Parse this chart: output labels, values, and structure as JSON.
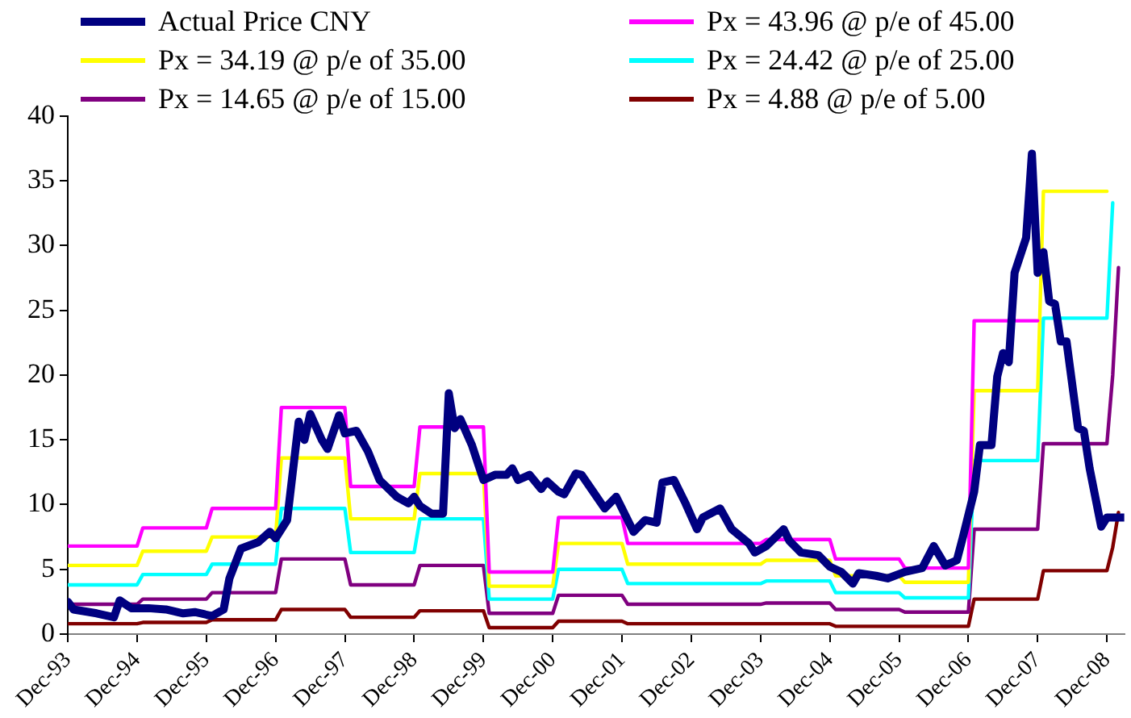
{
  "chart_data": {
    "type": "line",
    "legend": "top",
    "marker": "none",
    "line_style": "solid",
    "xlim": [
      "1993-12",
      "2009-03"
    ],
    "xticks": [
      {
        "value": "1993-12",
        "label": "Dec-93"
      },
      {
        "value": "1994-12",
        "label": "Dec-94"
      },
      {
        "value": "1995-12",
        "label": "Dec-95"
      },
      {
        "value": "1996-12",
        "label": "Dec-96"
      },
      {
        "value": "1997-12",
        "label": "Dec-97"
      },
      {
        "value": "1998-12",
        "label": "Dec-98"
      },
      {
        "value": "1999-12",
        "label": "Dec-99"
      },
      {
        "value": "2000-12",
        "label": "Dec-00"
      },
      {
        "value": "2001-12",
        "label": "Dec-01"
      },
      {
        "value": "2002-12",
        "label": "Dec-02"
      },
      {
        "value": "2003-12",
        "label": "Dec-03"
      },
      {
        "value": "2004-12",
        "label": "Dec-04"
      },
      {
        "value": "2005-12",
        "label": "Dec-05"
      },
      {
        "value": "2006-12",
        "label": "Dec-06"
      },
      {
        "value": "2007-12",
        "label": "Dec-07"
      },
      {
        "value": "2008-12",
        "label": "Dec-08"
      }
    ],
    "ylim": [
      0,
      40
    ],
    "yticks": [
      0,
      5,
      10,
      15,
      20,
      25,
      30,
      35,
      40
    ],
    "series": [
      {
        "name": "Actual Price CNY",
        "color": "#000080",
        "x": [
          "1993-12",
          "1994-01",
          "1994-05",
          "1994-08",
          "1994-09",
          "1994-11",
          "1995-02",
          "1995-05",
          "1995-08",
          "1995-10",
          "1996-01",
          "1996-03",
          "1996-04",
          "1996-06",
          "1996-09",
          "1996-11",
          "1996-12",
          "1997-02",
          "1997-04",
          "1997-05",
          "1997-06",
          "1997-08",
          "1997-09",
          "1997-11",
          "1997-12",
          "1998-02",
          "1998-04",
          "1998-06",
          "1998-09",
          "1998-11",
          "1998-12",
          "1999-01",
          "1999-03",
          "1999-05",
          "1999-06",
          "1999-07",
          "1999-08",
          "1999-10",
          "1999-12",
          "2000-02",
          "2000-04",
          "2000-05",
          "2000-06",
          "2000-08",
          "2000-10",
          "2000-11",
          "2001-01",
          "2001-02",
          "2001-04",
          "2001-05",
          "2001-07",
          "2001-09",
          "2001-11",
          "2001-12",
          "2002-02",
          "2002-04",
          "2002-06",
          "2002-07",
          "2002-09",
          "2002-11",
          "2003-01",
          "2003-02",
          "2003-05",
          "2003-07",
          "2003-10",
          "2003-11",
          "2004-01",
          "2004-04",
          "2004-05",
          "2004-07",
          "2004-10",
          "2004-12",
          "2005-02",
          "2005-04",
          "2005-05",
          "2005-08",
          "2005-10",
          "2006-01",
          "2006-04",
          "2006-06",
          "2006-08",
          "2006-10",
          "2006-11",
          "2007-01",
          "2007-02",
          "2007-04",
          "2007-05",
          "2007-06",
          "2007-07",
          "2007-08",
          "2007-10",
          "2007-11",
          "2007-12",
          "2008-01",
          "2008-02",
          "2008-03",
          "2008-04",
          "2008-05",
          "2008-07",
          "2008-08",
          "2008-09",
          "2008-11",
          "2008-12",
          "2009-03"
        ],
        "values": [
          2.5,
          1.9,
          1.6,
          1.3,
          2.6,
          2.0,
          2.0,
          1.9,
          1.6,
          1.7,
          1.4,
          1.9,
          4.3,
          6.6,
          7.1,
          7.9,
          7.4,
          8.8,
          16.4,
          15.0,
          17.0,
          15.0,
          14.3,
          16.9,
          15.5,
          15.7,
          14.1,
          11.9,
          10.6,
          10.1,
          10.6,
          9.9,
          9.3,
          9.3,
          18.6,
          15.9,
          16.6,
          14.6,
          11.9,
          12.3,
          12.3,
          12.8,
          11.9,
          12.3,
          11.2,
          11.8,
          11.0,
          10.8,
          12.4,
          12.3,
          11.0,
          9.7,
          10.6,
          9.7,
          7.9,
          8.8,
          8.6,
          11.7,
          11.9,
          10.1,
          8.1,
          9.0,
          9.7,
          8.1,
          7.0,
          6.3,
          6.8,
          8.1,
          7.2,
          6.3,
          6.1,
          5.2,
          4.8,
          3.9,
          4.7,
          4.5,
          4.3,
          4.8,
          5.1,
          6.8,
          5.3,
          5.7,
          7.4,
          11.0,
          14.6,
          14.6,
          19.9,
          21.7,
          21.0,
          27.9,
          30.6,
          37.1,
          27.9,
          29.5,
          25.7,
          25.5,
          22.6,
          22.6,
          15.9,
          15.7,
          12.8,
          8.3,
          9.0,
          9.0
        ]
      },
      {
        "name": "Px = 43.96 @ p/e of 45.00",
        "color": "#ff00ff",
        "x": [
          "1993-12",
          "1994-12",
          "1995-01",
          "1995-12",
          "1996-01",
          "1996-12",
          "1997-01",
          "1997-12",
          "1998-01",
          "1998-12",
          "1999-01",
          "1999-12",
          "2000-01",
          "2000-12",
          "2001-01",
          "2001-12",
          "2002-01",
          "2003-12",
          "2004-01",
          "2004-12",
          "2005-01",
          "2005-12",
          "2006-01",
          "2006-12",
          "2007-01",
          "2007-12"
        ],
        "values": [
          6.8,
          6.8,
          8.2,
          8.2,
          9.7,
          9.7,
          17.5,
          17.5,
          11.4,
          11.4,
          16.0,
          16.0,
          4.8,
          4.8,
          9.0,
          9.0,
          7.0,
          7.0,
          7.3,
          7.3,
          5.8,
          5.8,
          5.1,
          5.1,
          24.2,
          24.2
        ]
      },
      {
        "name": "Px = 34.19 @ p/e of 35.00",
        "color": "#ffff00",
        "x": [
          "1993-12",
          "1994-12",
          "1995-01",
          "1995-12",
          "1996-01",
          "1996-12",
          "1997-01",
          "1997-12",
          "1998-01",
          "1998-12",
          "1999-01",
          "1999-12",
          "2000-01",
          "2000-12",
          "2001-01",
          "2001-12",
          "2002-01",
          "2003-12",
          "2004-01",
          "2004-12",
          "2005-01",
          "2005-12",
          "2006-01",
          "2006-12",
          "2007-01",
          "2007-12",
          "2008-01",
          "2008-12"
        ],
        "values": [
          5.3,
          5.3,
          6.4,
          6.4,
          7.5,
          7.5,
          13.6,
          13.6,
          8.9,
          8.9,
          12.4,
          12.4,
          3.7,
          3.7,
          7.0,
          7.0,
          5.4,
          5.4,
          5.7,
          5.7,
          4.5,
          4.5,
          4.0,
          4.0,
          18.8,
          18.8,
          34.2,
          34.2
        ]
      },
      {
        "name": "Px = 24.42 @ p/e of 25.00",
        "color": "#00ffff",
        "x": [
          "1993-12",
          "1994-12",
          "1995-01",
          "1995-12",
          "1996-01",
          "1996-12",
          "1997-01",
          "1997-12",
          "1998-01",
          "1998-12",
          "1999-01",
          "1999-12",
          "2000-01",
          "2000-12",
          "2001-01",
          "2001-12",
          "2002-01",
          "2003-12",
          "2004-01",
          "2004-12",
          "2005-01",
          "2005-12",
          "2006-01",
          "2006-12",
          "2007-01",
          "2007-12",
          "2008-01",
          "2008-12",
          "2009-01"
        ],
        "values": [
          3.8,
          3.8,
          4.6,
          4.6,
          5.4,
          5.4,
          9.7,
          9.7,
          6.3,
          6.3,
          8.9,
          8.9,
          2.7,
          2.7,
          5.0,
          5.0,
          3.9,
          3.9,
          4.1,
          4.1,
          3.2,
          3.2,
          2.8,
          2.8,
          13.4,
          13.4,
          24.4,
          24.4,
          33.3
        ]
      },
      {
        "name": "Px = 14.65 @ p/e of 15.00",
        "color": "#800080",
        "x": [
          "1993-12",
          "1994-12",
          "1995-01",
          "1995-12",
          "1996-01",
          "1996-12",
          "1997-01",
          "1997-12",
          "1998-01",
          "1998-12",
          "1999-01",
          "1999-12",
          "2000-01",
          "2000-12",
          "2001-01",
          "2001-12",
          "2002-01",
          "2003-12",
          "2004-01",
          "2004-12",
          "2005-01",
          "2005-12",
          "2006-01",
          "2006-12",
          "2007-01",
          "2007-12",
          "2008-01",
          "2008-12",
          "2009-01",
          "2009-02"
        ],
        "values": [
          2.3,
          2.3,
          2.7,
          2.7,
          3.2,
          3.2,
          5.8,
          5.8,
          3.8,
          3.8,
          5.3,
          5.3,
          1.6,
          1.6,
          3.0,
          3.0,
          2.3,
          2.3,
          2.4,
          2.4,
          1.9,
          1.9,
          1.7,
          1.7,
          8.1,
          8.1,
          14.7,
          14.7,
          20.0,
          28.3
        ]
      },
      {
        "name": "Px = 4.88 @ p/e of 5.00",
        "color": "#800000",
        "x": [
          "1993-12",
          "1994-12",
          "1995-01",
          "1995-12",
          "1996-01",
          "1996-12",
          "1997-01",
          "1997-12",
          "1998-01",
          "1998-12",
          "1999-01",
          "1999-12",
          "2000-01",
          "2000-12",
          "2001-01",
          "2001-12",
          "2002-01",
          "2003-12",
          "2004-01",
          "2004-12",
          "2005-01",
          "2005-12",
          "2006-01",
          "2006-12",
          "2007-01",
          "2007-12",
          "2008-01",
          "2008-12",
          "2009-01",
          "2009-02"
        ],
        "values": [
          0.8,
          0.8,
          0.9,
          0.9,
          1.1,
          1.1,
          1.9,
          1.9,
          1.3,
          1.3,
          1.8,
          1.8,
          0.5,
          0.5,
          1.0,
          1.0,
          0.8,
          0.8,
          0.8,
          0.8,
          0.6,
          0.6,
          0.6,
          0.6,
          2.7,
          2.7,
          4.9,
          4.9,
          6.7,
          9.4
        ]
      }
    ]
  }
}
